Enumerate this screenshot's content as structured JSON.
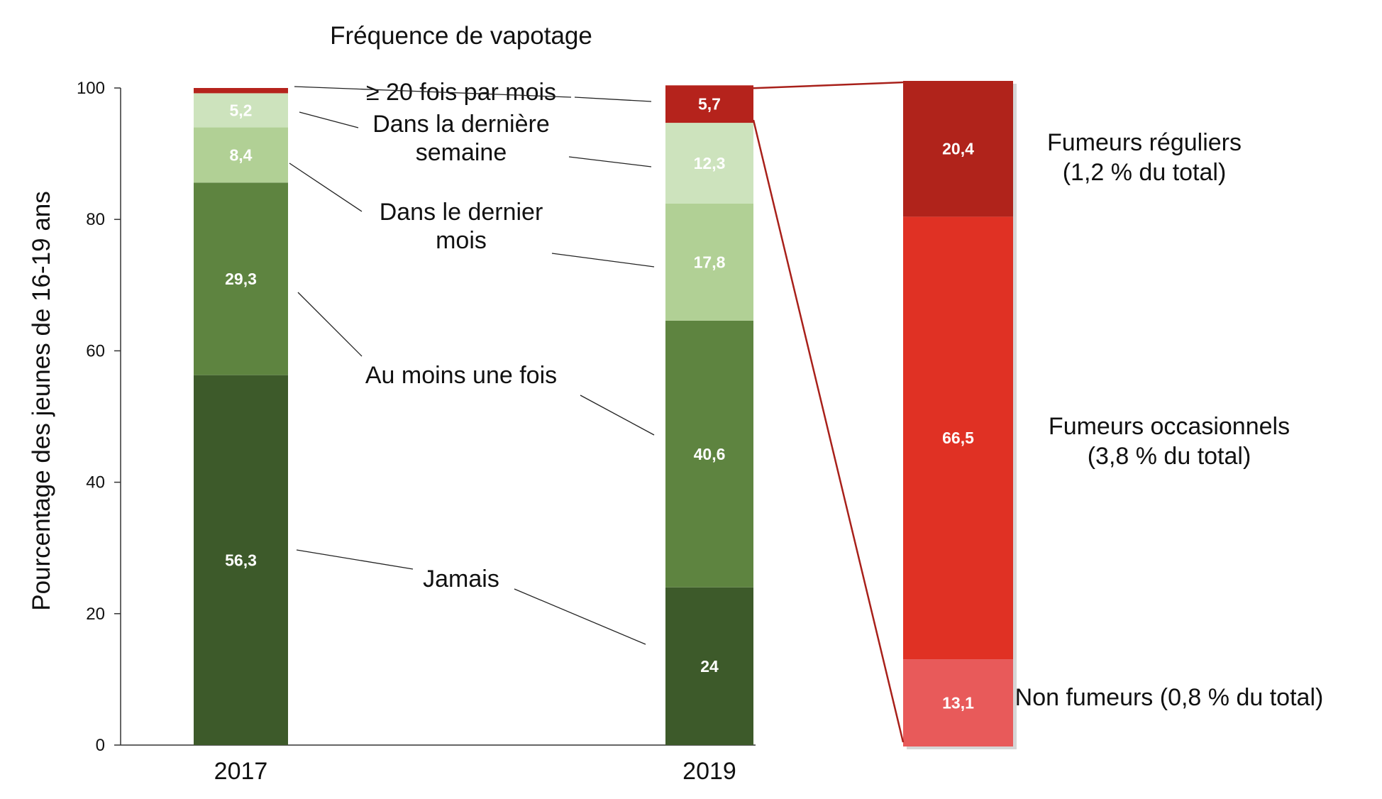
{
  "chart_data": {
    "type": "bar",
    "title": "Fréquence de vapotage",
    "ylabel": "Pourcentage des jeunes de 16-19 ans",
    "xlabel": "",
    "ylim": [
      0,
      100
    ],
    "yticks": [
      "0",
      "20",
      "40",
      "60",
      "80",
      "100"
    ],
    "stacked": true,
    "categories": [
      "2017",
      "2019"
    ],
    "series": [
      {
        "name": "Jamais",
        "values": [
          56.3,
          24
        ],
        "labels": [
          "56,3",
          "24"
        ],
        "color": "#3d5a2a"
      },
      {
        "name": "Au moins une fois",
        "values": [
          29.3,
          40.6
        ],
        "labels": [
          "29,3",
          "40,6"
        ],
        "color": "#5e8440"
      },
      {
        "name": "Dans le dernier mois",
        "values": [
          8.4,
          17.8
        ],
        "labels": [
          "8,4",
          "17,8"
        ],
        "color": "#b1d095"
      },
      {
        "name": "Dans la dernière semaine",
        "values": [
          5.2,
          12.3
        ],
        "labels": [
          "5,2",
          "12,3"
        ],
        "color": "#cde3bd"
      },
      {
        "name": "≥ 20 fois par mois",
        "values": [
          0.8,
          5.7
        ],
        "labels": [
          "",
          "5,7"
        ],
        "color": "#b5231c"
      }
    ],
    "callouts": [
      {
        "series": 4,
        "lines": [
          "≥ 20 fois par mois"
        ]
      },
      {
        "series": 3,
        "lines": [
          "Dans la dernière",
          "semaine"
        ]
      },
      {
        "series": 2,
        "lines": [
          "Dans le dernier",
          "mois"
        ]
      },
      {
        "series": 1,
        "lines": [
          "Au moins une fois"
        ]
      },
      {
        "series": 0,
        "lines": [
          "Jamais"
        ]
      }
    ],
    "breakdown": {
      "source_category": "2019",
      "source_series": "≥ 20 fois par mois",
      "segments": [
        {
          "name": "Non fumeurs",
          "value": 13.1,
          "label": "13,1",
          "caption": [
            "Non fumeurs (0,8 % du total)"
          ],
          "color": "#e85a5a"
        },
        {
          "name": "Fumeurs occasionnels",
          "value": 66.5,
          "label": "66,5",
          "caption": [
            "Fumeurs occasionnels",
            "(3,8 % du total)"
          ],
          "color": "#e03124"
        },
        {
          "name": "Fumeurs réguliers",
          "value": 20.4,
          "label": "20,4",
          "caption": [
            "Fumeurs réguliers",
            "(1,2 % du total)"
          ],
          "color": "#b0231b"
        }
      ]
    }
  }
}
